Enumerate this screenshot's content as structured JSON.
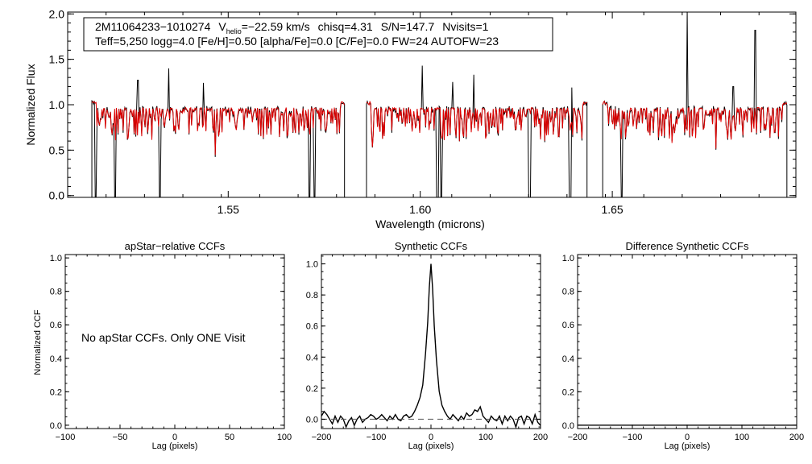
{
  "chart_data": [
    {
      "type": "line",
      "id": "spectrum",
      "annotation_line1": {
        "star_id": "2M11064233−1010274",
        "v_label": "V",
        "v_sub": "helio",
        "v_value": "=−22.59 km/s",
        "chisq": "chisq=4.31",
        "sn": "S/N=147.7",
        "nvisits": "Nvisits=1"
      },
      "annotation_line2": "Teff=5,250 logg=4.0 [Fe/H]=0.50 [alpha/Fe]=0.0 [C/Fe]=0.0 FW=24 AUTOFW=23",
      "xlabel": "Wavelength (microns)",
      "ylabel": "Normalized Flux",
      "xlim": [
        1.5082,
        1.6978
      ],
      "ylim": [
        -0.02,
        2.02
      ],
      "x_ticks": [
        "1.55",
        "1.60",
        "1.65"
      ],
      "y_ticks": [
        "0.0",
        "0.5",
        "1.0",
        "1.5",
        "2.0"
      ],
      "series": [
        {
          "name": "observed",
          "color": "#000000"
        },
        {
          "name": "model",
          "color": "#e00000"
        }
      ],
      "chip_ranges": [
        [
          1.5145,
          1.5805
        ],
        [
          1.586,
          1.6435
        ],
        [
          1.6475,
          1.6955
        ]
      ],
      "deep_lines": [
        1.5155,
        1.5205,
        1.5322,
        1.5712,
        1.5725,
        1.6045,
        1.6055,
        1.6285,
        1.639,
        1.6525
      ],
      "spikes": [
        {
          "x": 1.5265,
          "y": 1.27
        },
        {
          "x": 1.5345,
          "y": 1.4
        },
        {
          "x": 1.5435,
          "y": 1.24
        },
        {
          "x": 1.6005,
          "y": 1.43
        },
        {
          "x": 1.6085,
          "y": 1.25
        },
        {
          "x": 1.614,
          "y": 1.33
        },
        {
          "x": 1.6395,
          "y": 1.19
        },
        {
          "x": 1.6695,
          "y": 2.02
        },
        {
          "x": 1.6815,
          "y": 1.2
        },
        {
          "x": 1.6872,
          "y": 1.82
        }
      ]
    },
    {
      "type": "line",
      "id": "apstar",
      "title": "apStar−relative CCFs",
      "xlabel": "Lag (pixels)",
      "ylabel": "Normalized CCF",
      "xlim": [
        -100,
        100
      ],
      "ylim": [
        -0.02,
        1.02
      ],
      "x_ticks": [
        "−100",
        "−50",
        "0",
        "50",
        "100"
      ],
      "y_ticks": [
        "0.0",
        "0.2",
        "0.4",
        "0.6",
        "0.8",
        "1.0"
      ],
      "message": "No apStar CCFs.  Only ONE Visit",
      "series": []
    },
    {
      "type": "line",
      "id": "synthetic",
      "title": "Synthetic CCFs",
      "xlabel": "Lag (pixels)",
      "xlim": [
        -200,
        200
      ],
      "ylim": [
        -0.06,
        1.06
      ],
      "x_ticks": [
        "−200",
        "−100",
        "0",
        "100",
        "200"
      ],
      "y_ticks": [
        "0.0",
        "0.2",
        "0.4",
        "0.6",
        "0.8",
        "1.0"
      ],
      "series": [
        {
          "name": "ccf",
          "color": "#000000",
          "x": [
            -200,
            -195,
            -190,
            -185,
            -180,
            -175,
            -170,
            -165,
            -160,
            -155,
            -150,
            -145,
            -140,
            -135,
            -130,
            -125,
            -120,
            -115,
            -110,
            -105,
            -100,
            -95,
            -90,
            -85,
            -80,
            -75,
            -70,
            -65,
            -60,
            -55,
            -50,
            -45,
            -40,
            -35,
            -30,
            -25,
            -20,
            -15,
            -10,
            -6,
            -3,
            0,
            3,
            6,
            10,
            15,
            20,
            25,
            30,
            35,
            40,
            45,
            50,
            55,
            60,
            65,
            70,
            75,
            80,
            85,
            90,
            95,
            100,
            105,
            110,
            115,
            120,
            125,
            130,
            135,
            140,
            145,
            150,
            155,
            160,
            165,
            170,
            175,
            180,
            185,
            190,
            195,
            200
          ],
          "y": [
            0.02,
            0.05,
            0.03,
            0.0,
            -0.03,
            0.02,
            -0.02,
            0.02,
            0.0,
            -0.05,
            -0.01,
            0.01,
            -0.04,
            0.0,
            0.02,
            -0.02,
            0.0,
            0.01,
            0.03,
            0.02,
            0.0,
            0.01,
            0.03,
            0.01,
            -0.01,
            0.02,
            0.0,
            0.03,
            0.0,
            -0.01,
            0.02,
            0.03,
            0.01,
            0.02,
            0.05,
            0.09,
            0.14,
            0.22,
            0.42,
            0.62,
            0.85,
            1.0,
            0.84,
            0.6,
            0.38,
            0.18,
            0.09,
            0.05,
            0.02,
            0.0,
            0.03,
            0.01,
            -0.01,
            0.02,
            0.0,
            0.04,
            0.02,
            0.03,
            0.06,
            0.05,
            0.08,
            0.02,
            0.0,
            -0.02,
            0.02,
            0.0,
            -0.01,
            0.02,
            -0.03,
            0.02,
            -0.01,
            0.02,
            0.0,
            -0.05,
            0.01,
            0.02,
            -0.03,
            0.02,
            0.01,
            -0.03,
            0.03,
            -0.02,
            -0.04
          ]
        },
        {
          "name": "baseline",
          "color": "#555555",
          "dashed": true,
          "x": [
            -200,
            200
          ],
          "y": [
            0.0,
            0.0
          ]
        }
      ]
    },
    {
      "type": "line",
      "id": "difference",
      "title": "Difference Synthetic CCFs",
      "xlabel": "Lag (pixels)",
      "xlim": [
        -200,
        200
      ],
      "ylim": [
        -0.02,
        1.02
      ],
      "x_ticks": [
        "−200",
        "−100",
        "0",
        "100",
        "200"
      ],
      "y_ticks": [
        "0.0",
        "0.2",
        "0.4",
        "0.6",
        "0.8",
        "1.0"
      ],
      "series": [
        {
          "name": "diff",
          "color": "#000000",
          "x": [
            -200,
            200
          ],
          "y": [
            0.0,
            0.0
          ]
        }
      ]
    }
  ]
}
